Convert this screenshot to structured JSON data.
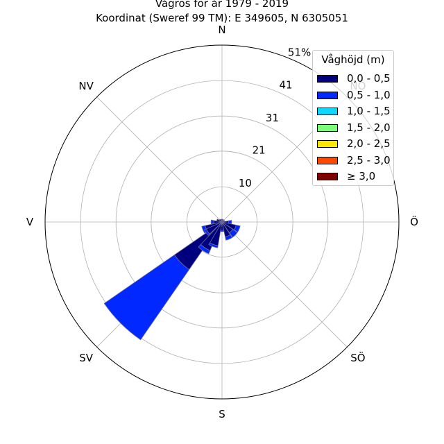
{
  "title_line1": "Vågros för år 1979 - 2019",
  "title_line2": "Koordinat (Sweref 99 TM): E 349605, N 6305051",
  "chart_data": {
    "type": "windrose",
    "title": "Vågros för år 1979 - 2019",
    "subtitle": "Koordinat (Sweref 99 TM): E 349605, N 6305051",
    "directions": [
      "N",
      "NNÖ",
      "NÖ",
      "ÖNÖ",
      "Ö",
      "ÖSÖ",
      "SÖ",
      "SSÖ",
      "S",
      "SSV",
      "SV",
      "VSV",
      "V",
      "VNV",
      "NV",
      "NNV"
    ],
    "compass_labels": [
      "N",
      "NÖ",
      "Ö",
      "SÖ",
      "S",
      "SV",
      "V",
      "NV"
    ],
    "radial_ticks": [
      "10",
      "21",
      "31",
      "41",
      "51%"
    ],
    "radial_tick_values": [
      10.2,
      20.6,
      30.8,
      41.1,
      51.4
    ],
    "rmax": 51.4,
    "legend_title": "Våghöjd (m)",
    "legend_placement": "top-right",
    "bins": [
      {
        "label": "0,0 - 0,5",
        "color": "#00007f"
      },
      {
        "label": "0,5 - 1,0",
        "color": "#0028ff"
      },
      {
        "label": "1,0 - 1,5",
        "color": "#0dd8ff"
      },
      {
        "label": "1,5 - 2,0",
        "color": "#7bff7b"
      },
      {
        "label": "2,0 - 2,5",
        "color": "#ffe600"
      },
      {
        "label": "2,5 - 3,0",
        "color": "#ff4700"
      },
      {
        "label": "≥ 3,0",
        "color": "#7f0000"
      }
    ],
    "series": [
      {
        "direction": "N",
        "values": [
          0.8,
          0,
          0,
          0,
          0,
          0,
          0
        ]
      },
      {
        "direction": "NNÖ",
        "values": [
          0.8,
          0,
          0,
          0,
          0,
          0,
          0
        ]
      },
      {
        "direction": "NÖ",
        "values": [
          0.6,
          0,
          0,
          0,
          0,
          0,
          0
        ]
      },
      {
        "direction": "ÖNÖ",
        "values": [
          0.8,
          0,
          0,
          0,
          0,
          0,
          0
        ]
      },
      {
        "direction": "Ö",
        "values": [
          1.9,
          0.9,
          0,
          0,
          0,
          0,
          0
        ]
      },
      {
        "direction": "ÖSÖ",
        "values": [
          4.2,
          1.2,
          0,
          0,
          0,
          0,
          0
        ]
      },
      {
        "direction": "SÖ",
        "values": [
          3.8,
          1.6,
          0,
          0,
          0,
          0,
          0
        ]
      },
      {
        "direction": "SSÖ",
        "values": [
          4.4,
          1.0,
          0,
          0,
          0,
          0,
          0
        ]
      },
      {
        "direction": "S",
        "values": [
          2.4,
          0.4,
          0,
          0,
          0,
          0,
          0
        ]
      },
      {
        "direction": "SSV",
        "values": [
          1.6,
          0.2,
          0,
          0,
          0,
          0,
          0
        ]
      },
      {
        "direction": "SV",
        "values": [
          2.6,
          0.2,
          0,
          0,
          0,
          0,
          0
        ]
      },
      {
        "direction": "VSV",
        "values": [
          5.0,
          1.0,
          0,
          0,
          0,
          0,
          0
        ]
      },
      {
        "direction": "V",
        "values": [
          2.4,
          0.8,
          0,
          0,
          0,
          0,
          0
        ]
      },
      {
        "direction": "VNV",
        "values": [
          1.6,
          0,
          0,
          0,
          0,
          0,
          0
        ]
      },
      {
        "direction": "NV",
        "values": [
          1.0,
          0,
          0,
          0,
          0,
          0,
          0
        ]
      },
      {
        "direction": "NNV",
        "values": [
          0.8,
          0,
          0,
          0,
          0,
          0,
          0
        ]
      }
    ],
    "series_note_removed": true,
    "sector_values": {
      "SV_long": [
        16.8,
        24.8
      ],
      "SSV_mid": [
        9.0,
        1.0
      ],
      "SV_near": [
        5.0,
        0.6
      ]
    },
    "grid": true
  }
}
